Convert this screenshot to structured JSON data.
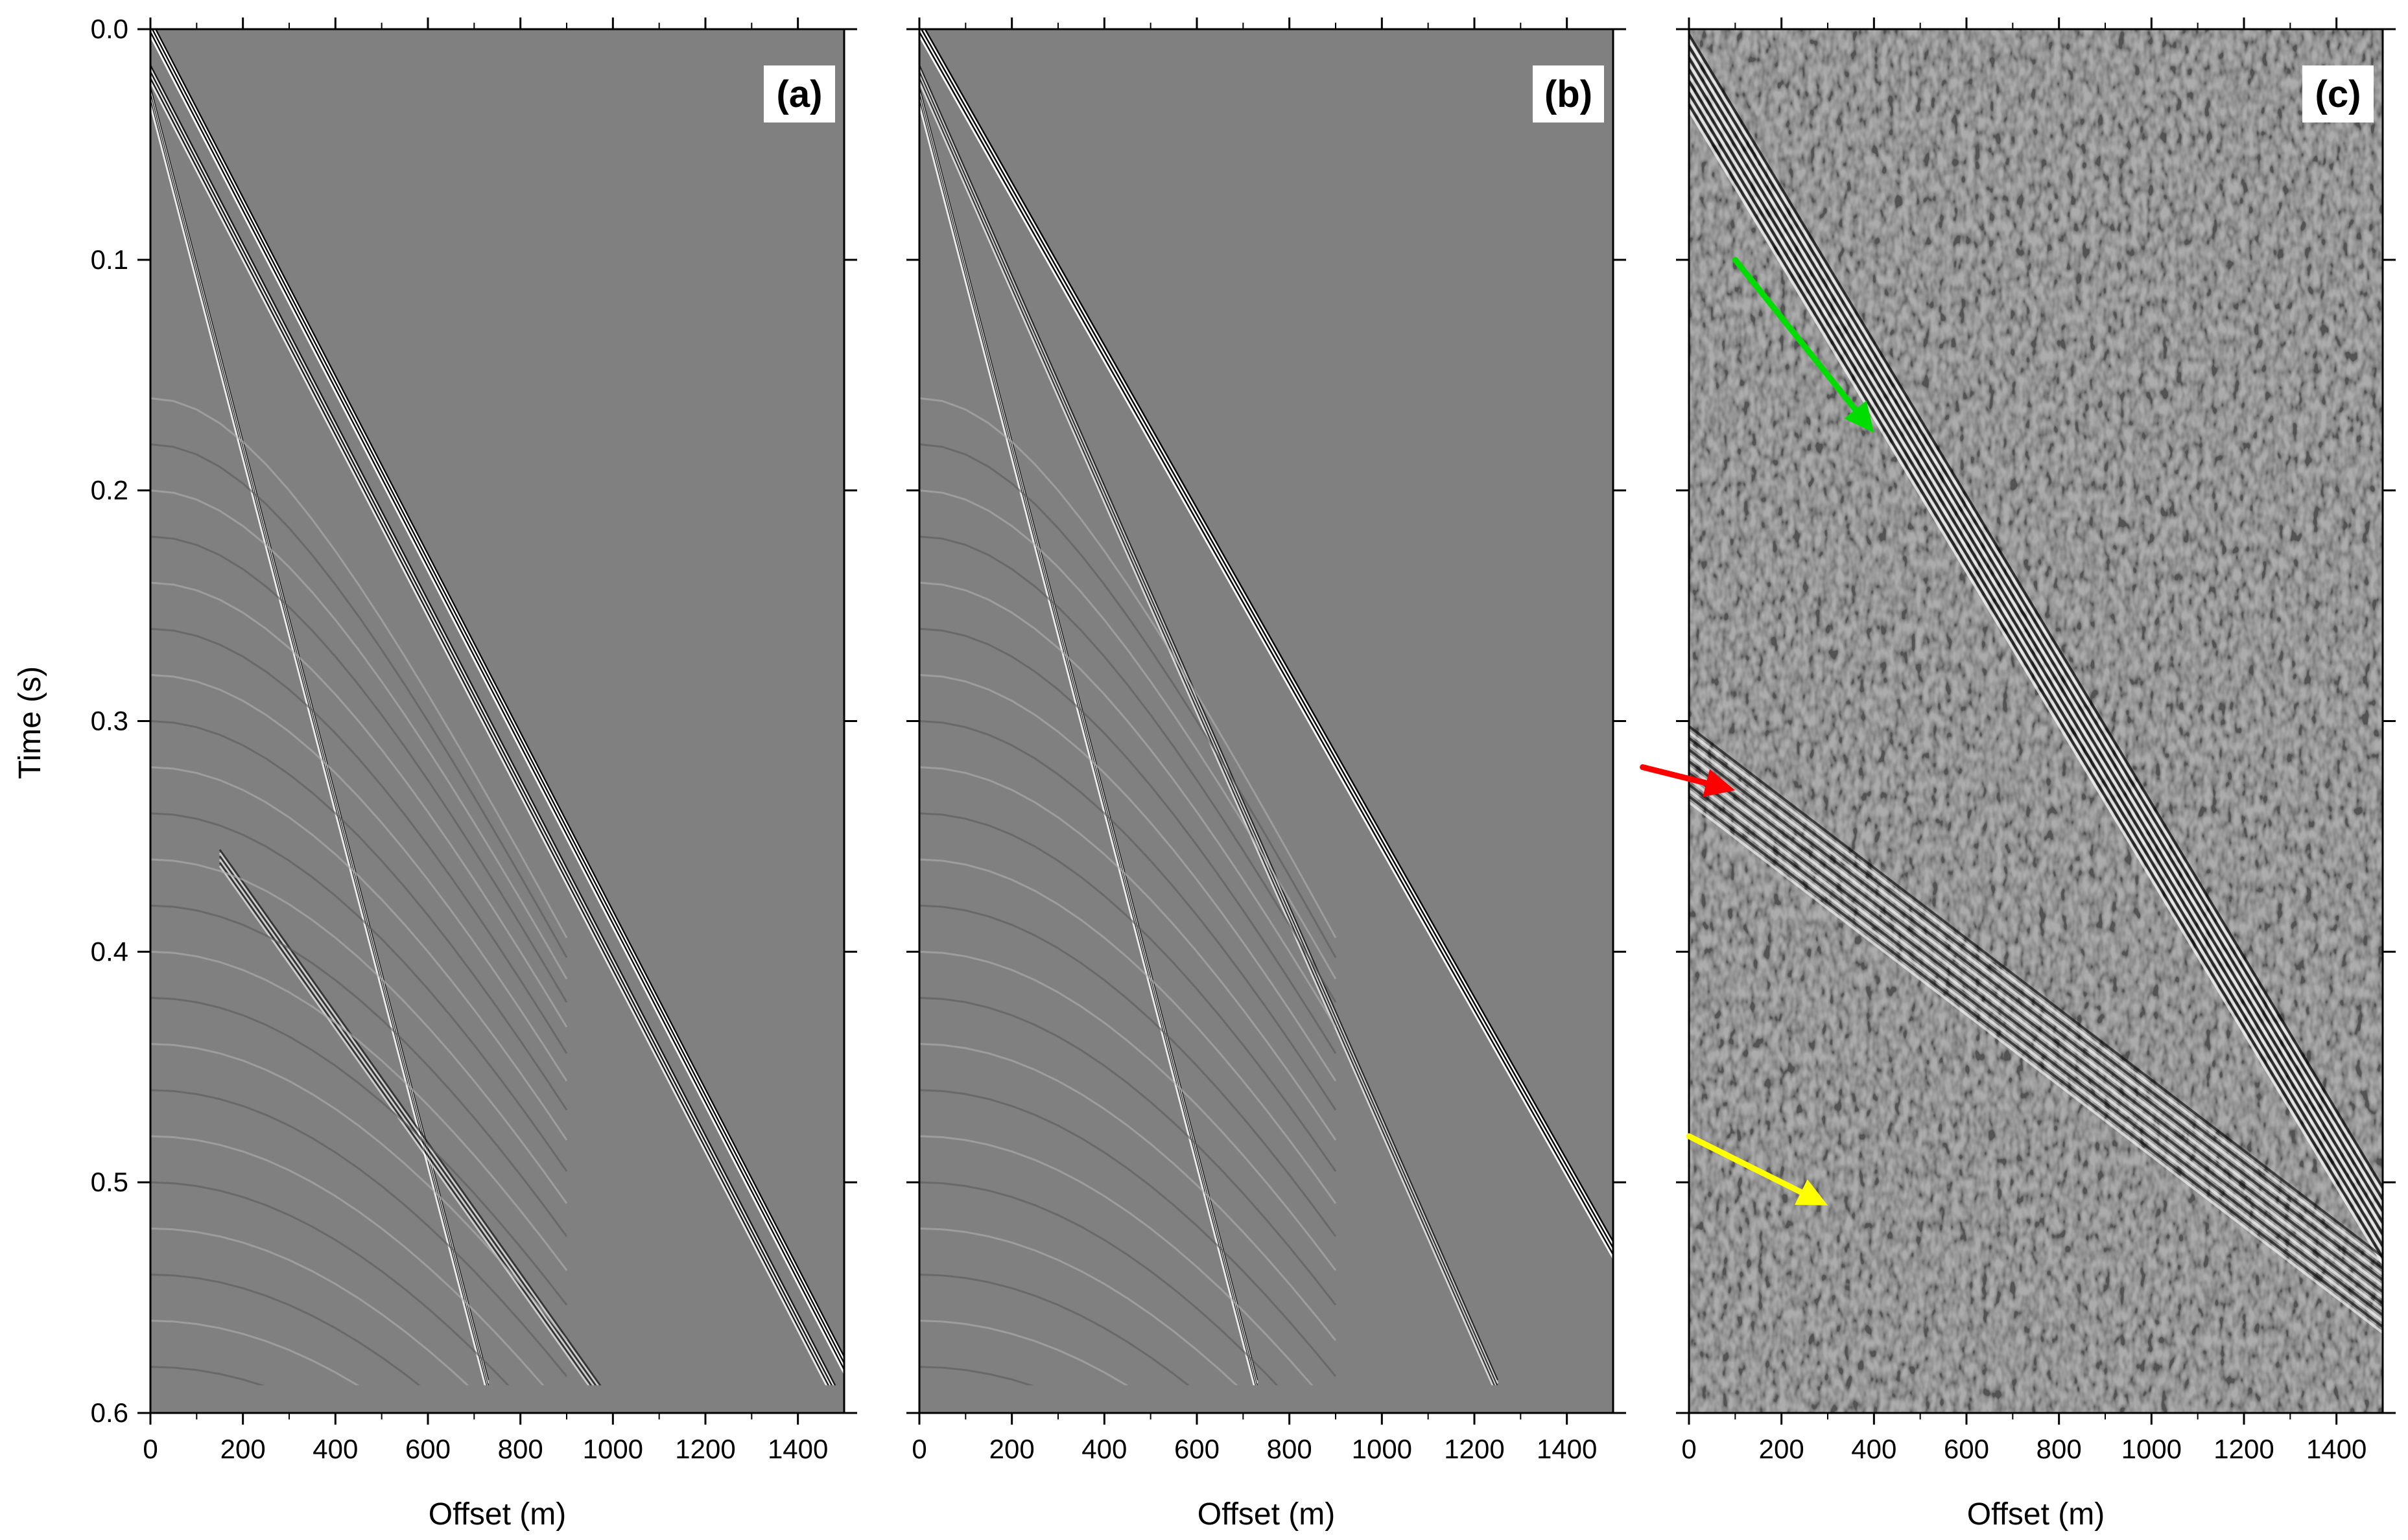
{
  "figure": {
    "ylabel": "Time (s)",
    "background": "#ffffff",
    "gather_gray": "#808080"
  },
  "chart_data": [
    {
      "type": "heatmap",
      "panel_label": "(a)",
      "xlabel": "Offset (m)",
      "ylabel": "Time (s)",
      "xlim": [
        0,
        1500
      ],
      "ylim": [
        0.0,
        0.6
      ],
      "y_inverted": true,
      "x_ticks": [
        0,
        200,
        400,
        600,
        800,
        1000,
        1200,
        1400
      ],
      "y_ticks": [
        0.0,
        0.1,
        0.2,
        0.3,
        0.4,
        0.5,
        0.6
      ],
      "colormap": "seismic grayscale (black-white)",
      "events": [
        {
          "x": [
            0,
            1500
          ],
          "t": [
            0.0,
            0.58
          ],
          "strength": 1.0
        },
        {
          "x": [
            0,
            1500
          ],
          "t": [
            0.02,
            0.6
          ],
          "strength": 0.8
        },
        {
          "x": [
            0,
            730
          ],
          "t": [
            0.03,
            0.59
          ],
          "strength": 0.9
        },
        {
          "x": [
            150,
            1000
          ],
          "t": [
            0.36,
            0.6
          ],
          "strength": 0.4
        }
      ],
      "annotations": []
    },
    {
      "type": "heatmap",
      "panel_label": "(b)",
      "xlabel": "Offset (m)",
      "ylabel": "",
      "xlim": [
        0,
        1500
      ],
      "ylim": [
        0.0,
        0.6
      ],
      "y_inverted": true,
      "x_ticks": [
        0,
        200,
        400,
        600,
        800,
        1000,
        1200,
        1400
      ],
      "y_ticks": [
        0.0,
        0.1,
        0.2,
        0.3,
        0.4,
        0.5,
        0.6
      ],
      "colormap": "seismic grayscale (black-white)",
      "events": [
        {
          "x": [
            0,
            1500
          ],
          "t": [
            0.0,
            0.53
          ],
          "strength": 1.0
        },
        {
          "x": [
            0,
            1250
          ],
          "t": [
            0.02,
            0.59
          ],
          "strength": 0.6
        },
        {
          "x": [
            0,
            730
          ],
          "t": [
            0.03,
            0.59
          ],
          "strength": 0.9
        }
      ],
      "annotations": []
    },
    {
      "type": "heatmap",
      "panel_label": "(c)",
      "xlabel": "Offset (m)",
      "ylabel": "",
      "xlim": [
        0,
        1500
      ],
      "ylim": [
        0.0,
        0.6
      ],
      "y_inverted": true,
      "x_ticks": [
        0,
        200,
        400,
        600,
        800,
        1000,
        1200,
        1400
      ],
      "y_ticks": [
        0.0,
        0.1,
        0.2,
        0.3,
        0.4,
        0.5,
        0.6
      ],
      "colormap": "seismic grayscale (black-white), noisy field data",
      "events": [
        {
          "x": [
            0,
            1500
          ],
          "t": [
            0.02,
            0.52
          ],
          "strength": 1.0
        },
        {
          "x": [
            0,
            1500
          ],
          "t": [
            0.32,
            0.55
          ],
          "strength": 0.8
        }
      ],
      "annotations": [
        {
          "type": "arrow",
          "color": "#00dd00",
          "from": [
            100,
            0.1
          ],
          "to": [
            400,
            0.175
          ]
        },
        {
          "type": "arrow",
          "color": "#ff0000",
          "from": [
            -100,
            0.32
          ],
          "to": [
            100,
            0.33
          ]
        },
        {
          "type": "arrow",
          "color": "#ffff00",
          "from": [
            0,
            0.48
          ],
          "to": [
            300,
            0.51
          ]
        }
      ]
    }
  ]
}
